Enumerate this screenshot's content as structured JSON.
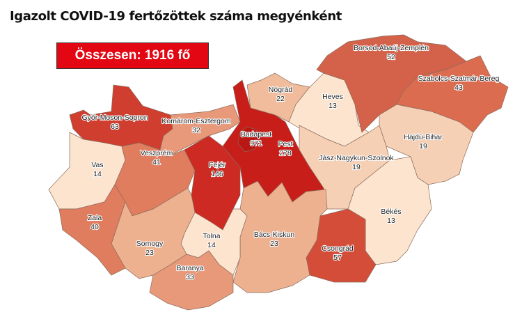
{
  "title": "Igazolt COVID-19 fertőzöttek száma megyénként",
  "total_label": "Összesen: 1916 fő",
  "counties": [
    {
      "name": "Győr-Moson-Sopron",
      "value": "63",
      "color": "#cf3e2f"
    },
    {
      "name": "Komárom-Esztergom",
      "value": "32",
      "color": "#e8997a"
    },
    {
      "name": "Vas",
      "value": "14",
      "color": "#fce4cf"
    },
    {
      "name": "Veszprém",
      "value": "41",
      "color": "#e07d5f"
    },
    {
      "name": "Fejér",
      "value": "146",
      "color": "#cc2a22"
    },
    {
      "name": "Pest",
      "value": "278",
      "color": "#c81e1a"
    },
    {
      "name": "Budapest",
      "value": "971",
      "color": "#b81714"
    },
    {
      "name": "Nógrád",
      "value": "22",
      "color": "#f0bc9c"
    },
    {
      "name": "Heves",
      "value": "13",
      "color": "#fce4cf"
    },
    {
      "name": "Borsod-Abaúj-Zemplén",
      "value": "52",
      "color": "#d4624a"
    },
    {
      "name": "Szabolcs-Szatmár-Bereg",
      "value": "43",
      "color": "#dc6c50"
    },
    {
      "name": "Hajdú-Bihar",
      "value": "19",
      "color": "#f5d0b5"
    },
    {
      "name": "Jász-Nagykun-Szolnok",
      "value": "19",
      "color": "#f5d0b5"
    },
    {
      "name": "Békés",
      "value": "13",
      "color": "#fce4cf"
    },
    {
      "name": "Csongrád",
      "value": "57",
      "color": "#d44d39"
    },
    {
      "name": "Bács-Kiskun",
      "value": "23",
      "color": "#edb190"
    },
    {
      "name": "Tolna",
      "value": "14",
      "color": "#fce4cf"
    },
    {
      "name": "Somogy",
      "value": "23",
      "color": "#edb190"
    },
    {
      "name": "Zala",
      "value": "40",
      "color": "#e07d5f"
    },
    {
      "name": "Baranya",
      "value": "33",
      "color": "#e8997a"
    }
  ],
  "colors": {
    "total_box": "#e30613"
  }
}
